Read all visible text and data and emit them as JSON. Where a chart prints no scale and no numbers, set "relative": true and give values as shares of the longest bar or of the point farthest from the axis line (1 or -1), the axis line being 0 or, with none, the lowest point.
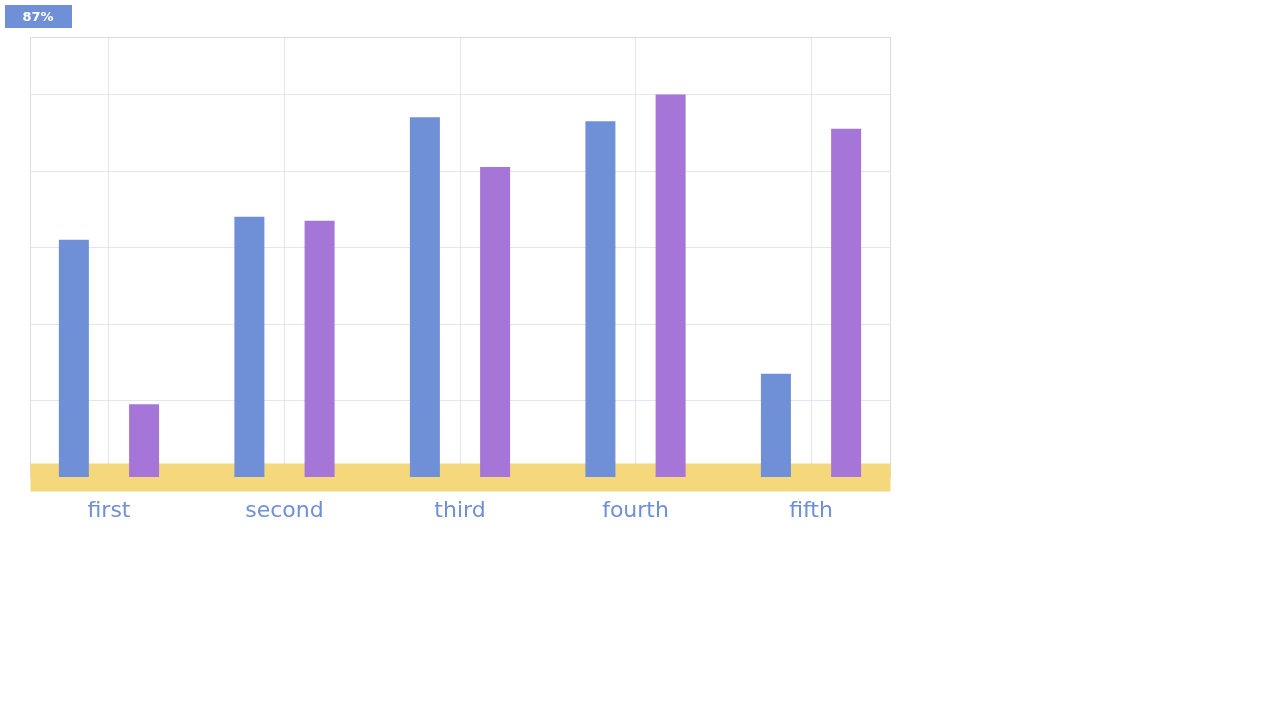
{
  "chart_data": {
    "type": "bar",
    "relative": true,
    "grid": true,
    "categories": [
      "first",
      "second",
      "third",
      "fourth",
      "fifth"
    ],
    "series": [
      {
        "color": "#6f8fd6",
        "values": [
          0.62,
          0.68,
          0.94,
          0.93,
          0.27
        ]
      },
      {
        "color": "#a675d8",
        "values": [
          0.19,
          0.67,
          0.81,
          1.0,
          0.91
        ]
      }
    ],
    "annotations": [
      "87%"
    ]
  }
}
